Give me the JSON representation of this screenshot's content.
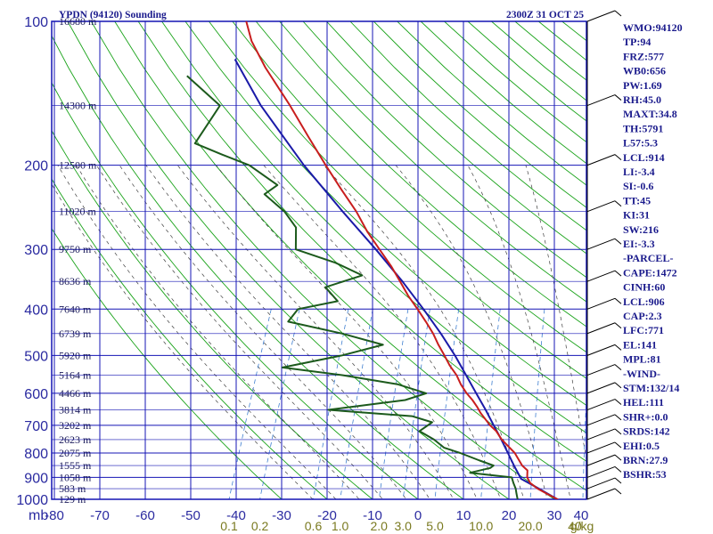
{
  "header": {
    "station": "YPDN (94120) Sounding",
    "time": "2300Z 31 OCT 25"
  },
  "chart_data": {
    "type": "skew-t",
    "pressure_unit_label": "mb",
    "mixing_ratio_unit_label": "g/kg",
    "pressure_levels": [
      100,
      200,
      300,
      400,
      500,
      600,
      700,
      800,
      900,
      1000
    ],
    "pressure_tick_labels": [
      "100",
      "200",
      "300",
      "400",
      "500",
      "600",
      "700",
      "800",
      "900",
      "1000"
    ],
    "temperature_ticks": [
      -80,
      -70,
      -60,
      -50,
      -40,
      -30,
      -20,
      -10,
      0,
      10,
      20,
      30,
      40
    ],
    "temperature_tick_labels": [
      "-80",
      "-70",
      "-60",
      "-50",
      "-40",
      "-30",
      "-20",
      "-10",
      "0",
      "10",
      "20",
      "30",
      "40"
    ],
    "mixing_ratio_labels": [
      {
        "label": "0.1",
        "value": 0.1
      },
      {
        "label": "0.2",
        "value": 0.2
      },
      {
        "label": "0.6",
        "value": 0.6
      },
      {
        "label": "1.0",
        "value": 1.0
      },
      {
        "label": "2.0",
        "value": 2.0
      },
      {
        "label": "3.0",
        "value": 3.0
      },
      {
        "label": "5.0",
        "value": 5.0
      },
      {
        "label": "10.0",
        "value": 10.0
      },
      {
        "label": "20.0",
        "value": 20.0
      },
      {
        "label": "40",
        "value": 40.0
      }
    ],
    "height_labels": [
      {
        "p": 100,
        "label": "16680 m"
      },
      {
        "p": 150,
        "label": "14300 m"
      },
      {
        "p": 200,
        "label": "12500 m"
      },
      {
        "p": 250,
        "label": "11020 m"
      },
      {
        "p": 300,
        "label": "9750 m"
      },
      {
        "p": 350,
        "label": "8636 m"
      },
      {
        "p": 400,
        "label": "7640 m"
      },
      {
        "p": 450,
        "label": "6739 m"
      },
      {
        "p": 500,
        "label": "5920 m"
      },
      {
        "p": 550,
        "label": "5164 m"
      },
      {
        "p": 600,
        "label": "4466 m"
      },
      {
        "p": 650,
        "label": "3814 m"
      },
      {
        "p": 700,
        "label": "3202 m"
      },
      {
        "p": 750,
        "label": "2623 m"
      },
      {
        "p": 800,
        "label": "2075 m"
      },
      {
        "p": 850,
        "label": "1555 m"
      },
      {
        "p": 900,
        "label": "1058 m"
      },
      {
        "p": 950,
        "label": "583 m"
      },
      {
        "p": 1000,
        "label": "129 m"
      }
    ],
    "temperature_profile": [
      {
        "p": 1003,
        "t": 31.0
      },
      {
        "p": 975,
        "t": 28.0
      },
      {
        "p": 950,
        "t": 25.3
      },
      {
        "p": 925,
        "t": 23.2
      },
      {
        "p": 900,
        "t": 22.0
      },
      {
        "p": 870,
        "t": 21.4
      },
      {
        "p": 850,
        "t": 19.8
      },
      {
        "p": 800,
        "t": 17.0
      },
      {
        "p": 750,
        "t": 12.9
      },
      {
        "p": 720,
        "t": 10.9
      },
      {
        "p": 700,
        "t": 9.0
      },
      {
        "p": 660,
        "t": 5.8
      },
      {
        "p": 640,
        "t": 4.4
      },
      {
        "p": 620,
        "t": 2.8
      },
      {
        "p": 600,
        "t": 0.9
      },
      {
        "p": 575,
        "t": -1.2
      },
      {
        "p": 550,
        "t": -3.0
      },
      {
        "p": 525,
        "t": -5.4
      },
      {
        "p": 500,
        "t": -7.5
      },
      {
        "p": 475,
        "t": -9.8
      },
      {
        "p": 450,
        "t": -12.0
      },
      {
        "p": 425,
        "t": -14.7
      },
      {
        "p": 400,
        "t": -17.7
      },
      {
        "p": 375,
        "t": -21.0
      },
      {
        "p": 350,
        "t": -24.1
      },
      {
        "p": 325,
        "t": -27.5
      },
      {
        "p": 300,
        "t": -31.6
      },
      {
        "p": 275,
        "t": -36.0
      },
      {
        "p": 250,
        "t": -40.2
      },
      {
        "p": 225,
        "t": -45.5
      },
      {
        "p": 200,
        "t": -51.2
      },
      {
        "p": 175,
        "t": -57.5
      },
      {
        "p": 150,
        "t": -64.6
      },
      {
        "p": 125,
        "t": -73.5
      },
      {
        "p": 110,
        "t": -79.0
      },
      {
        "p": 100,
        "t": -82.0
      }
    ],
    "dewpoint_profile": [
      {
        "p": 1003,
        "t": 22.0
      },
      {
        "p": 975,
        "t": 21.2
      },
      {
        "p": 950,
        "t": 20.5
      },
      {
        "p": 925,
        "t": 19.5
      },
      {
        "p": 900,
        "t": 18.6
      },
      {
        "p": 880,
        "t": 9.0
      },
      {
        "p": 860,
        "t": 13.0
      },
      {
        "p": 850,
        "t": 13.5
      },
      {
        "p": 830,
        "t": 10.0
      },
      {
        "p": 800,
        "t": 5.0
      },
      {
        "p": 780,
        "t": 1.0
      },
      {
        "p": 750,
        "t": -2.0
      },
      {
        "p": 720,
        "t": -6.0
      },
      {
        "p": 690,
        "t": -4.0
      },
      {
        "p": 670,
        "t": -9.0
      },
      {
        "p": 650,
        "t": -28.0
      },
      {
        "p": 620,
        "t": -12.0
      },
      {
        "p": 600,
        "t": -8.0
      },
      {
        "p": 575,
        "t": -15.0
      },
      {
        "p": 550,
        "t": -28.0
      },
      {
        "p": 530,
        "t": -42.0
      },
      {
        "p": 500,
        "t": -30.0
      },
      {
        "p": 475,
        "t": -22.0
      },
      {
        "p": 450,
        "t": -32.0
      },
      {
        "p": 425,
        "t": -45.0
      },
      {
        "p": 400,
        "t": -44.0
      },
      {
        "p": 385,
        "t": -36.0
      },
      {
        "p": 360,
        "t": -40.0
      },
      {
        "p": 340,
        "t": -33.0
      },
      {
        "p": 320,
        "t": -40.0
      },
      {
        "p": 300,
        "t": -50.0
      },
      {
        "p": 270,
        "t": -52.0
      },
      {
        "p": 250,
        "t": -56.0
      },
      {
        "p": 230,
        "t": -62.0
      },
      {
        "p": 220,
        "t": -60.0
      },
      {
        "p": 200,
        "t": -68.0
      },
      {
        "p": 190,
        "t": -75.0
      },
      {
        "p": 180,
        "t": -82.0
      },
      {
        "p": 150,
        "t": -80.0
      },
      {
        "p": 130,
        "t": -90.0
      }
    ],
    "parcel_profile": [
      {
        "p": 1003,
        "t": 31.0
      },
      {
        "p": 950,
        "t": 25.6
      },
      {
        "p": 906,
        "t": 20.8
      },
      {
        "p": 850,
        "t": 18.0
      },
      {
        "p": 800,
        "t": 15.5
      },
      {
        "p": 750,
        "t": 12.8
      },
      {
        "p": 700,
        "t": 9.8
      },
      {
        "p": 650,
        "t": 6.6
      },
      {
        "p": 600,
        "t": 3.0
      },
      {
        "p": 550,
        "t": -0.9
      },
      {
        "p": 500,
        "t": -5.2
      },
      {
        "p": 450,
        "t": -10.3
      },
      {
        "p": 400,
        "t": -16.4
      },
      {
        "p": 350,
        "t": -23.6
      },
      {
        "p": 300,
        "t": -32.4
      },
      {
        "p": 250,
        "t": -43.2
      },
      {
        "p": 200,
        "t": -56.0
      },
      {
        "p": 150,
        "t": -71.0
      },
      {
        "p": 120,
        "t": -81.0
      }
    ]
  },
  "indices": [
    "WMO:94120",
    "TP:94",
    "FRZ:577",
    "WB0:656",
    "PW:1.69",
    "RH:45.0",
    "MAXT:34.8",
    "TH:5791",
    "L57:5.3",
    "LCL:914",
    "LI:-3.4",
    "SI:-0.6",
    "TT:45",
    "KI:31",
    "SW:216",
    "EI:-3.3",
    "-PARCEL-",
    "CAPE:1472",
    "CINH:60",
    "LCL:906",
    "CAP:2.3",
    "LFC:771",
    "EL:141",
    "MPL:81",
    "-WIND-",
    "STM:132/14",
    "HEL:111",
    "SHR+:0.0",
    "SRDS:142",
    "EHI:0.5",
    "BRN:27.9",
    "BSHR:53"
  ],
  "colors": {
    "frame": "#1414b4",
    "dry_adiabat": "#1aa31a",
    "moist_adiabat": "#404040",
    "mixing_ratio": "#3f7fd0",
    "temperature": "#c81e1e",
    "dewpoint": "#1c5a1c",
    "parcel": "#1a1aa8",
    "wind_barb": "#000000"
  }
}
